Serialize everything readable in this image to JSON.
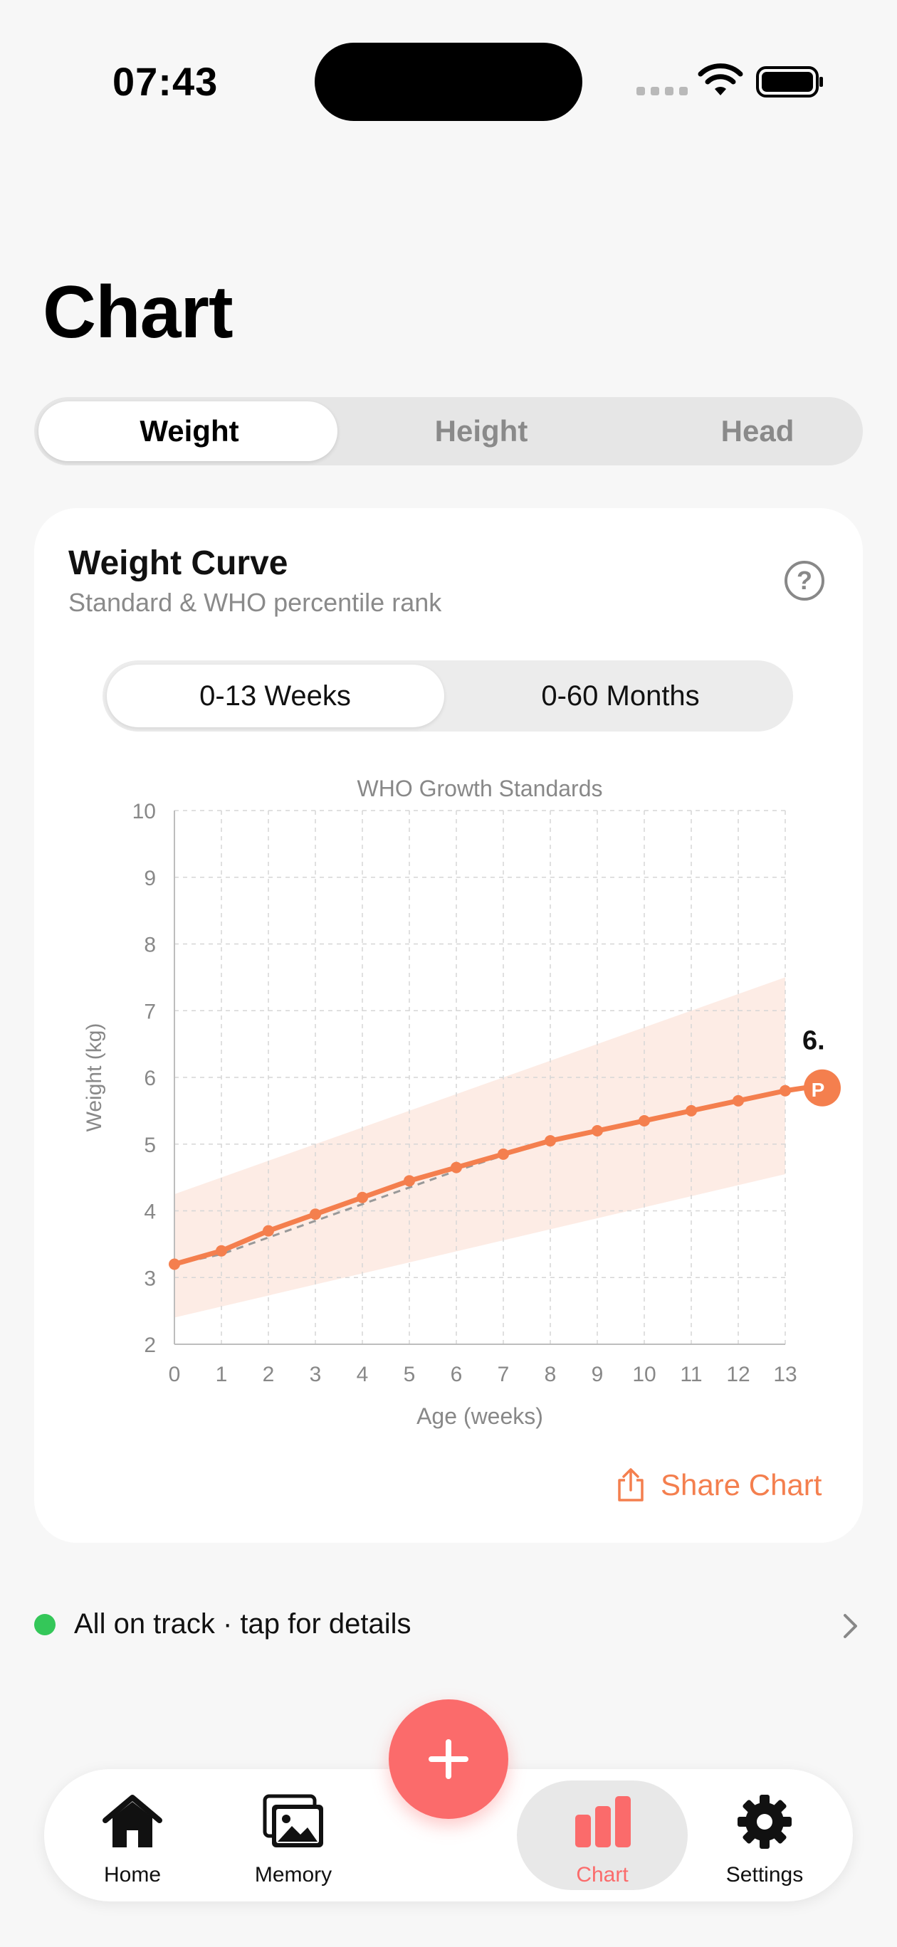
{
  "status_bar": {
    "time": "07:43"
  },
  "page": {
    "title": "Chart"
  },
  "metric_tabs": [
    {
      "label": "Weight",
      "active": true
    },
    {
      "label": "Height",
      "active": false
    },
    {
      "label": "Head",
      "active": false
    }
  ],
  "card": {
    "title": "Weight Curve",
    "subtitle": "Standard & WHO percentile rank",
    "range_tabs": [
      {
        "label": "0-13 Weeks",
        "active": true
      },
      {
        "label": "0-60 Months",
        "active": false
      }
    ],
    "share_label": "Share Chart"
  },
  "chart_data": {
    "type": "line",
    "title": "WHO Growth Standards",
    "xlabel": "Age (weeks)",
    "ylabel": "Weight (kg)",
    "xlim": [
      0,
      13
    ],
    "ylim": [
      2,
      10
    ],
    "x_ticks": [
      0,
      1,
      2,
      3,
      4,
      5,
      6,
      7,
      8,
      9,
      10,
      11,
      12,
      13
    ],
    "y_ticks": [
      2,
      3,
      4,
      5,
      6,
      7,
      8,
      9,
      10
    ],
    "grid": true,
    "band": {
      "x": [
        0,
        13
      ],
      "lower": [
        2.4,
        4.55
      ],
      "upper": [
        4.25,
        7.5
      ]
    },
    "series": [
      {
        "x": [
          0,
          1,
          2,
          3,
          4,
          5,
          6,
          7,
          8,
          9,
          10,
          11,
          12,
          13
        ],
        "values": [
          3.2,
          3.4,
          3.7,
          3.95,
          4.2,
          4.45,
          4.65,
          4.85,
          5.05,
          5.2,
          5.35,
          5.5,
          5.65,
          5.8
        ],
        "color": "#f47f4e",
        "style": "solid"
      },
      {
        "x": [
          0,
          1,
          2,
          3,
          4,
          5,
          6,
          7,
          8,
          9,
          10,
          11,
          12,
          13
        ],
        "values": [
          3.2,
          3.35,
          3.6,
          3.85,
          4.1,
          4.35,
          4.6,
          4.83,
          5.03,
          5.2,
          5.35,
          5.5,
          5.65,
          5.8
        ],
        "color": "#999999",
        "style": "dashed"
      }
    ],
    "end_label": "6.",
    "end_badge": "P"
  },
  "status_row": {
    "text": "All on track · tap for details"
  },
  "tab_bar": [
    {
      "label": "Home",
      "icon": "house-icon",
      "active": false
    },
    {
      "label": "Memory",
      "icon": "photos-icon",
      "active": false
    },
    {
      "label": "Chart",
      "icon": "bar-chart-icon",
      "active": true
    },
    {
      "label": "Settings",
      "icon": "gear-icon",
      "active": false
    }
  ],
  "colors": {
    "accent": "#f47f4e",
    "fab": "#fb6b6b",
    "ok": "#34c759"
  }
}
